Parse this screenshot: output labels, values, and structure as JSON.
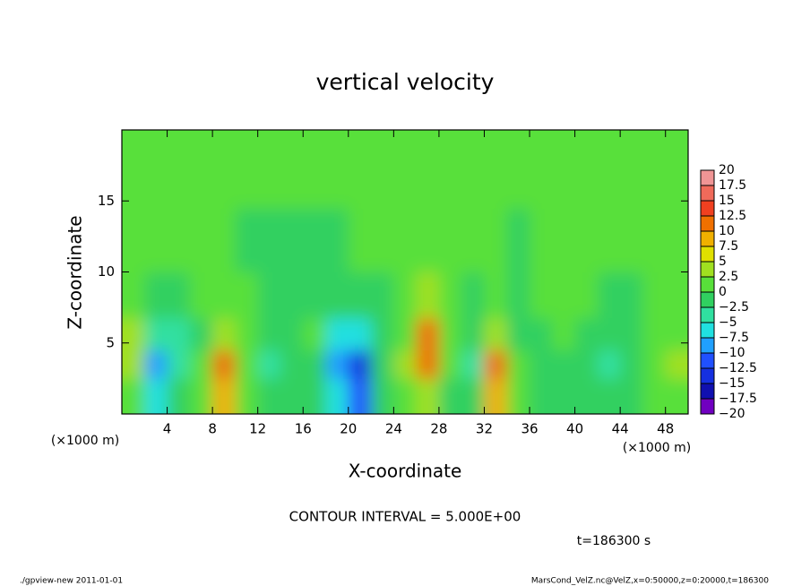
{
  "chart_data": {
    "type": "heatmap",
    "title": "vertical velocity",
    "x_label": "X-coordinate",
    "y_label": "Z-coordinate",
    "x_unit": "(×1000 m)",
    "y_unit": "(×1000 m)",
    "annotation": "CONTOUR INTERVAL = 5.000E+00",
    "time_label": "t=186300 s",
    "footer_left": "./gpview-new  2011-01-01",
    "footer_right": "MarsCond_VelZ.nc@VelZ,x=0:50000,z=0:20000,t=186300",
    "x": [
      1,
      3,
      5,
      7,
      9,
      11,
      13,
      15,
      17,
      19,
      21,
      23,
      25,
      27,
      29,
      31,
      33,
      35,
      37,
      39,
      41,
      43,
      45,
      47,
      49
    ],
    "y": [
      1.5,
      3.5,
      5.5,
      8,
      12,
      17
    ],
    "values": [
      [
        2,
        -5,
        -2,
        1,
        10,
        2,
        -1,
        0,
        0,
        -6,
        -10,
        -1,
        1,
        5,
        0,
        -2,
        9,
        1,
        0,
        0,
        0,
        -1,
        -1,
        1,
        2
      ],
      [
        4,
        -9,
        -3,
        1,
        12,
        2,
        -4,
        -1,
        0,
        -9,
        -13,
        -2,
        3,
        12,
        1,
        -3,
        11,
        1,
        0,
        0,
        -1,
        -3,
        -2,
        2,
        3
      ],
      [
        3,
        -4,
        -4,
        0,
        4,
        1,
        -2,
        -1,
        1,
        -6,
        -7,
        -1,
        2,
        11,
        1,
        -1,
        3,
        0,
        0,
        1,
        0,
        -1,
        -1,
        1,
        2
      ],
      [
        1,
        0,
        0,
        1,
        2,
        1,
        0,
        -1,
        0,
        -1,
        -1,
        0,
        1,
        3,
        1,
        0,
        1,
        0,
        1,
        1,
        1,
        0,
        0,
        1,
        1
      ],
      [
        1,
        1,
        1,
        1,
        1,
        0,
        -1,
        -1,
        -1,
        0,
        1,
        1,
        1,
        1,
        1,
        1,
        1,
        0,
        1,
        1,
        1,
        1,
        1,
        1,
        1
      ],
      [
        1,
        1,
        1,
        1,
        1,
        1,
        1,
        1,
        1,
        1,
        1,
        1,
        1,
        1,
        1,
        1,
        1,
        1,
        1,
        1,
        1,
        1,
        1,
        1,
        1
      ]
    ],
    "xlim": [
      0,
      50
    ],
    "ylim": [
      0,
      20
    ],
    "xticks": [
      4,
      8,
      12,
      16,
      20,
      24,
      28,
      32,
      36,
      40,
      44,
      48
    ],
    "yticks": [
      5,
      10,
      15
    ],
    "colorbar": {
      "ticks": [
        20,
        17.5,
        15,
        12.5,
        10,
        7.5,
        5,
        2.5,
        0,
        {
          "value": -2.5,
          "label": "−2.5"
        },
        {
          "value": -5,
          "label": "−5"
        },
        {
          "value": -7.5,
          "label": "−7.5"
        },
        {
          "value": -10,
          "label": "−10"
        },
        {
          "value": -12.5,
          "label": "−12.5"
        },
        {
          "value": -15,
          "label": "−15"
        },
        {
          "value": -17.5,
          "label": "−17.5"
        },
        {
          "value": -20,
          "label": "−20"
        }
      ],
      "colors": [
        "#f09595",
        "#f06a5a",
        "#f04020",
        "#f07000",
        "#f0b000",
        "#e0e000",
        "#a0e020",
        "#58e03a",
        "#30d060",
        "#30e0a0",
        "#20e0e0",
        "#20a0ff",
        "#2050ff",
        "#1530e0",
        "#1010b0",
        "#7000c0"
      ]
    }
  }
}
